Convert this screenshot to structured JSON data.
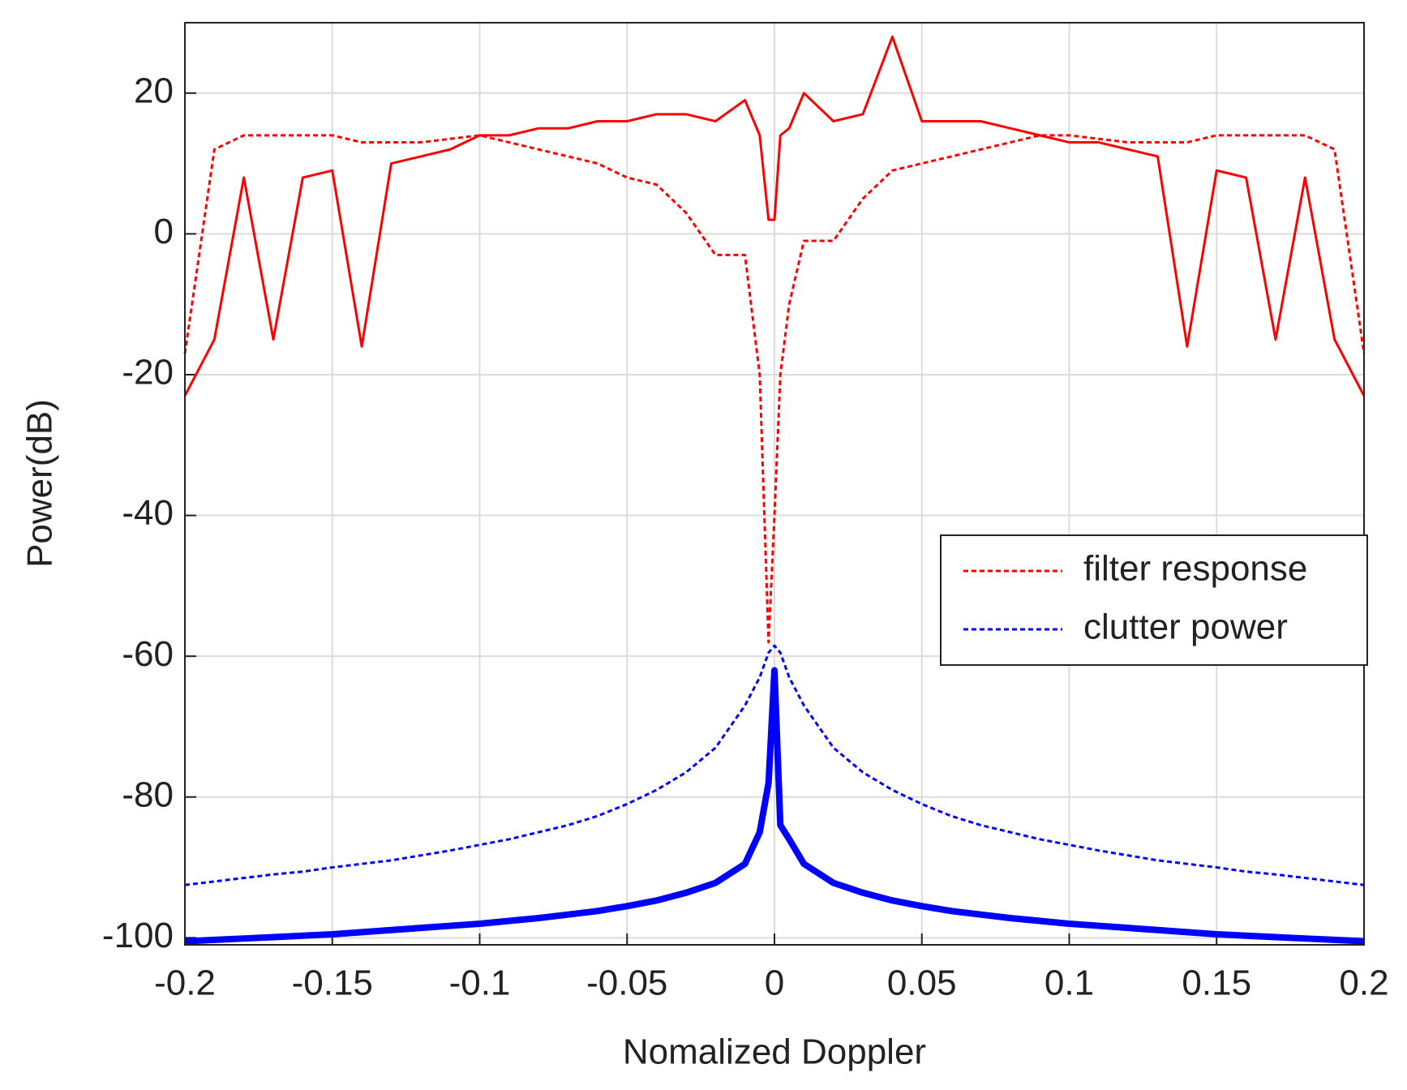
{
  "chart_data": {
    "type": "line",
    "xlabel": "Nomalized Doppler",
    "ylabel": "Power(dB)",
    "x": [
      -0.2,
      -0.19,
      -0.18,
      -0.17,
      -0.16,
      -0.15,
      -0.14,
      -0.13,
      -0.12,
      -0.11,
      -0.1,
      -0.09,
      -0.08,
      -0.07,
      -0.06,
      -0.05,
      -0.04,
      -0.03,
      -0.02,
      -0.01,
      -0.005,
      -0.002,
      0,
      0.002,
      0.005,
      0.01,
      0.02,
      0.03,
      0.04,
      0.05,
      0.06,
      0.07,
      0.08,
      0.09,
      0.1,
      0.11,
      0.12,
      0.13,
      0.14,
      0.15,
      0.16,
      0.17,
      0.18,
      0.19,
      0.2
    ],
    "series": [
      {
        "name": "filter response",
        "color": "#ff0000",
        "line_style": "dotted",
        "line_width": 3,
        "values": [
          -17,
          12,
          14,
          14,
          14,
          14,
          13,
          13,
          13,
          13.5,
          14,
          13,
          12,
          11,
          10,
          8,
          7,
          3,
          -3,
          -3,
          -20,
          -58,
          -40,
          -20,
          -10,
          -1,
          -1,
          5,
          9,
          10,
          11,
          12,
          13,
          14,
          14,
          13.5,
          13,
          13,
          13,
          14,
          14,
          14,
          14,
          12,
          -17
        ]
      },
      {
        "color": "#ff0000",
        "line_style": "solid",
        "line_width": 3,
        "values": [
          -23,
          -15,
          8,
          -15,
          8,
          9,
          -16,
          10,
          11,
          12,
          14,
          14,
          15,
          15,
          16,
          16,
          17,
          17,
          16,
          19,
          14,
          2,
          2,
          14,
          15,
          20,
          16,
          17,
          28,
          16,
          16,
          16,
          15,
          14,
          13,
          13,
          12,
          11,
          -16,
          9,
          8,
          -15,
          8,
          -15,
          -23
        ]
      },
      {
        "name": "clutter power",
        "color": "#0000ff",
        "line_style": "dotted",
        "line_width": 3,
        "values": [
          -92.5,
          -92,
          -91.5,
          -91,
          -90.6,
          -90,
          -89.5,
          -89,
          -88.3,
          -87.6,
          -86.8,
          -86,
          -85,
          -84,
          -82.7,
          -81,
          -79,
          -76.5,
          -73,
          -67,
          -63,
          -59.5,
          -58.5,
          -59.5,
          -63,
          -67,
          -73,
          -76.5,
          -79,
          -81,
          -82.7,
          -84,
          -85,
          -86,
          -86.8,
          -87.6,
          -88.3,
          -89,
          -89.5,
          -90,
          -90.6,
          -91,
          -91.5,
          -92,
          -92.5
        ]
      },
      {
        "color": "#0000ff",
        "line_style": "solid",
        "line_width": 8,
        "values": [
          -100.5,
          -100.3,
          -100.1,
          -99.9,
          -99.7,
          -99.5,
          -99.2,
          -98.9,
          -98.6,
          -98.3,
          -98,
          -97.6,
          -97.2,
          -96.7,
          -96.2,
          -95.5,
          -94.7,
          -93.6,
          -92.2,
          -89.5,
          -85,
          -78,
          -62,
          -84,
          -86,
          -89.5,
          -92.2,
          -93.6,
          -94.7,
          -95.5,
          -96.2,
          -96.7,
          -97.2,
          -97.6,
          -98,
          -98.3,
          -98.6,
          -98.9,
          -99.2,
          -99.5,
          -99.7,
          -99.9,
          -100.1,
          -100.3,
          -100.5
        ]
      }
    ],
    "xlim": [
      -0.2,
      0.2
    ],
    "xticks": [
      -0.2,
      -0.15,
      -0.1,
      -0.05,
      0,
      0.05,
      0.1,
      0.15,
      0.2
    ],
    "ylim": [
      -101,
      30
    ],
    "yticks": [
      -100,
      -80,
      -60,
      -40,
      -20,
      0,
      20
    ],
    "grid": true,
    "legend": "right"
  }
}
